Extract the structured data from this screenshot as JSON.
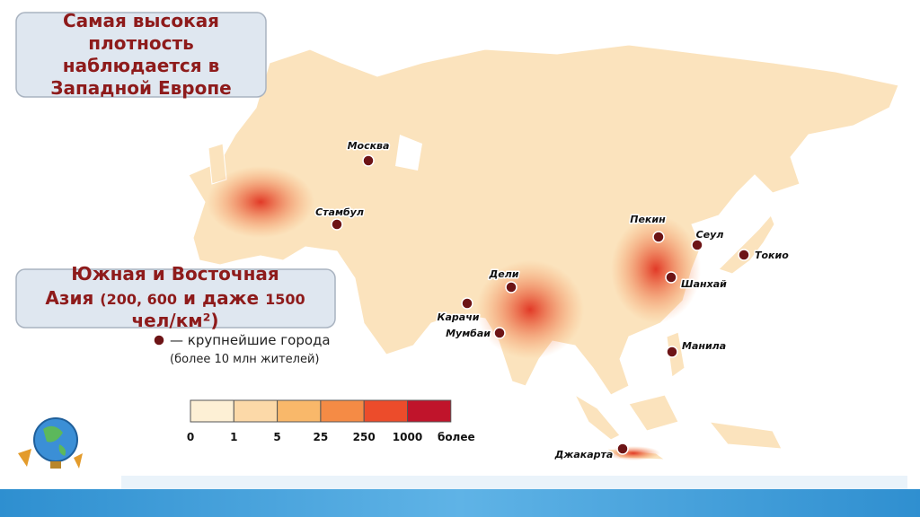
{
  "callout_europe": {
    "lines": [
      "Самая высокая",
      "плотность",
      "наблюдается в",
      "Западной Европе"
    ]
  },
  "callout_asia": {
    "lines": [
      [
        "Южная и Восточная"
      ],
      [
        "Азия",
        "(200, 600",
        "и даже",
        "1500"
      ],
      [
        "чел/км²)"
      ]
    ]
  },
  "cities": [
    "Москва",
    "Стамбул",
    "Пекин",
    "Сеул",
    "Токио",
    "Дели",
    "Шанхай",
    "Карачи",
    "Мумбаи",
    "Манила",
    "Джакарта"
  ],
  "legend": {
    "marker_label": "— крупнейшие города",
    "note": "(более 10 млн жителей)"
  },
  "scale": {
    "colors": [
      "#fdf0d5",
      "#fcd9a8",
      "#f9b86a",
      "#f58b45",
      "#ec4c2b",
      "#c0142b"
    ],
    "labels": [
      "0",
      "1",
      "5",
      "25",
      "250",
      "1000",
      "более"
    ]
  }
}
